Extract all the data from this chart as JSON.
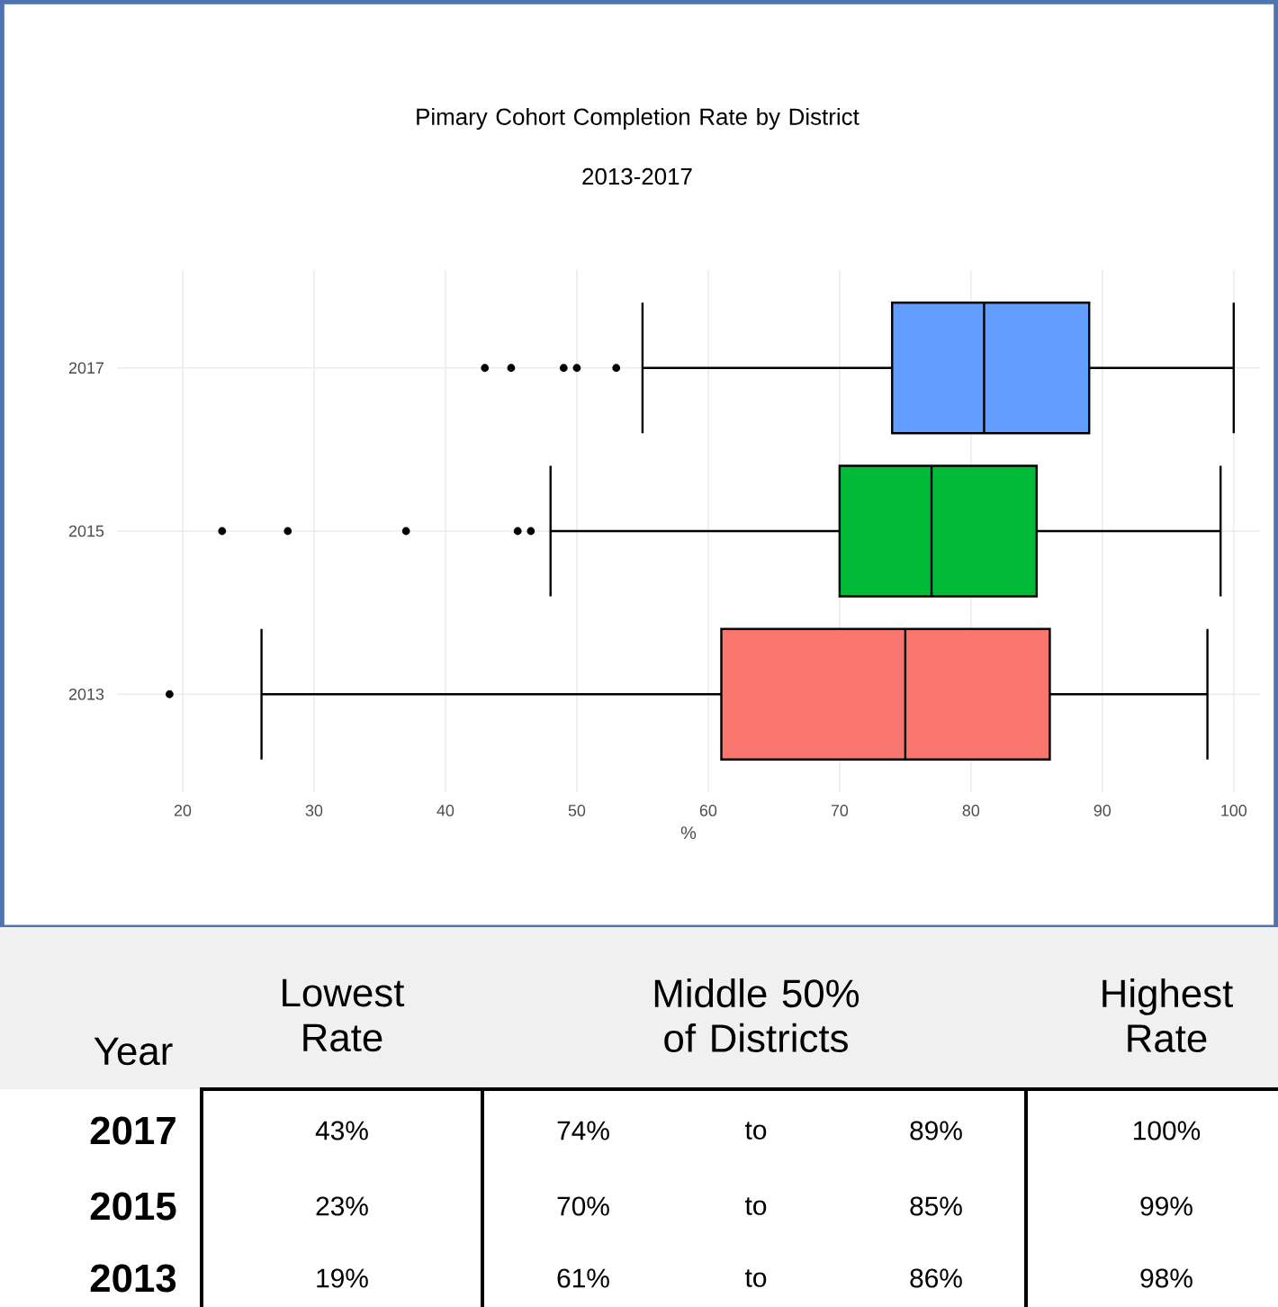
{
  "chart_data": {
    "type": "box",
    "orientation": "horizontal",
    "title": "Pimary Cohort Completion Rate by District",
    "subtitle": "2013-2017",
    "xlabel": "%",
    "categories": [
      "2017",
      "2015",
      "2013"
    ],
    "colors": [
      "#619cff",
      "#00ba38",
      "#f8766d"
    ],
    "boxes": [
      {
        "low": 55,
        "q1": 74,
        "median": 81,
        "q3": 89,
        "high": 100,
        "outliers": [
          43,
          45,
          49,
          50,
          53
        ]
      },
      {
        "low": 48,
        "q1": 70,
        "median": 77,
        "q3": 85,
        "high": 99,
        "outliers": [
          23,
          28,
          37,
          45.5,
          46.5
        ]
      },
      {
        "low": 26,
        "q1": 61,
        "median": 75,
        "q3": 86,
        "high": 98,
        "outliers": [
          19
        ]
      }
    ],
    "xlim": [
      15,
      102
    ],
    "xticks": [
      20,
      30,
      40,
      50,
      60,
      70,
      80,
      90,
      100
    ],
    "grid": true,
    "annotations": [
      "Year",
      "Lowest Rate",
      "Middle 50% of Districts",
      "Highest Rate",
      "2017",
      "43%",
      "74%",
      "to",
      "89%",
      "100%",
      "2015",
      "23%",
      "70%",
      "to",
      "85%",
      "99%",
      "2013",
      "19%",
      "61%",
      "to",
      "86%",
      "98%"
    ]
  }
}
